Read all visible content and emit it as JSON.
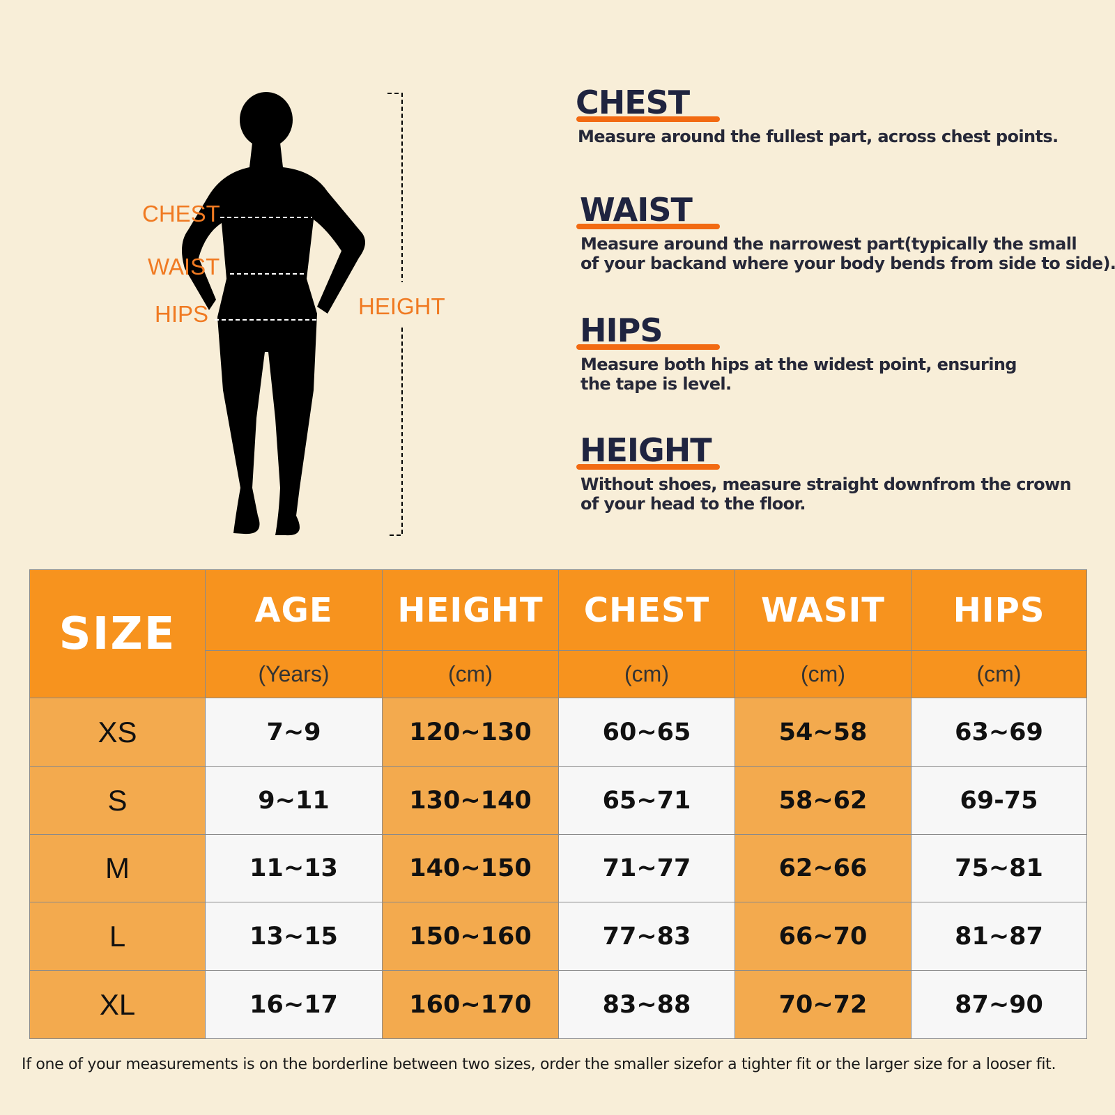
{
  "figure": {
    "labels": {
      "chest": "CHEST",
      "waist": "WAIST",
      "hips": "HIPS",
      "height": "HEIGHT"
    }
  },
  "guide": [
    {
      "title": "CHEST",
      "lines": [
        "Measure around the fullest part, across chest points."
      ]
    },
    {
      "title": "WAIST",
      "lines": [
        "Measure around the narrowest part(typically the small",
        "of your backand where your body bends from side to side)."
      ]
    },
    {
      "title": "HIPS",
      "lines": [
        "Measure both hips at the widest point, ensuring",
        "the tape is level."
      ]
    },
    {
      "title": "HEIGHT",
      "lines": [
        "Without shoes, measure straight downfrom the crown",
        "of your head to the floor."
      ]
    }
  ],
  "table": {
    "size_header": "SIZE",
    "columns": [
      {
        "name": "AGE",
        "unit": "(Years)"
      },
      {
        "name": "HEIGHT",
        "unit": "(cm)"
      },
      {
        "name": "CHEST",
        "unit": "(cm)"
      },
      {
        "name": "WASIT",
        "unit": "(cm)"
      },
      {
        "name": "HIPS",
        "unit": "(cm)"
      }
    ],
    "rows": [
      [
        "XS",
        "7~9",
        "120~130",
        "60~65",
        "54~58",
        "63~69"
      ],
      [
        "S",
        "9~11",
        "130~140",
        "65~71",
        "58~62",
        "69-75"
      ],
      [
        "M",
        "11~13",
        "140~150",
        "71~77",
        "62~66",
        "75~81"
      ],
      [
        "L",
        "13~15",
        "150~160",
        "77~83",
        "66~70",
        "81~87"
      ],
      [
        "XL",
        "16~17",
        "160~170",
        "83~88",
        "70~72",
        "87~90"
      ]
    ]
  },
  "footnote": "If one of your measurements is on the borderline between two sizes, order the smaller sizefor a tighter fit or the larger size for a looser fit."
}
